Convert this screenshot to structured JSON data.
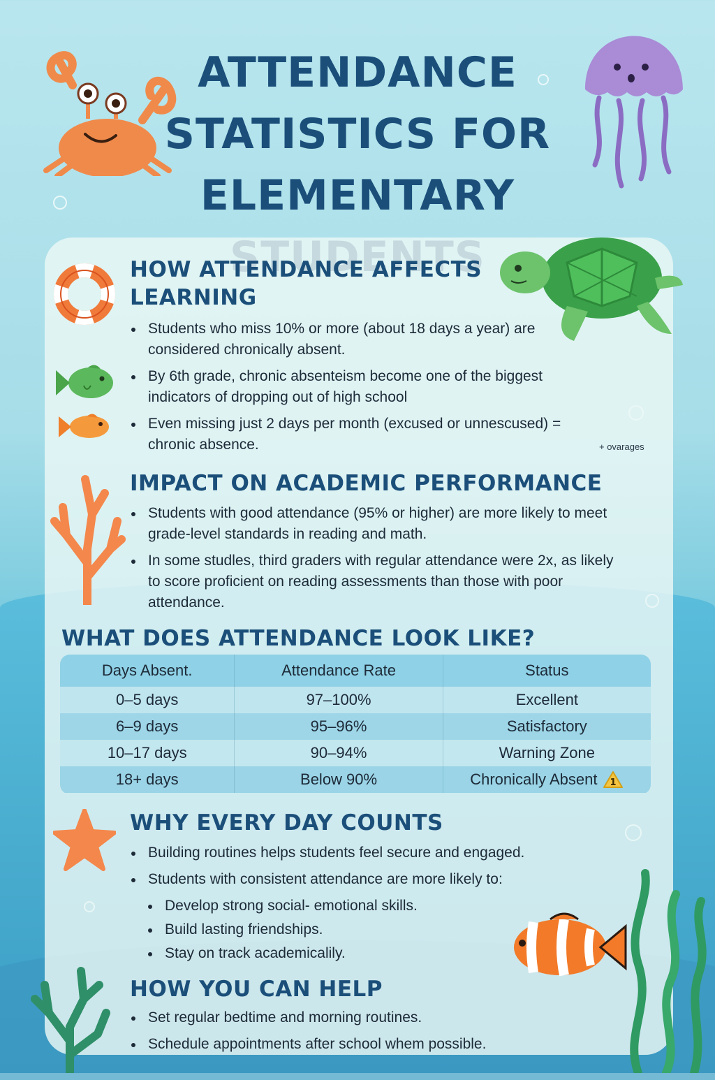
{
  "title": "ATTENDANCE STATISTICS FOR ELEMENTARY STUDENTS",
  "sections": {
    "learning": {
      "heading": "HOW ATTENDANCE AFFECTS LEARNING",
      "bullets": [
        "Students who miss 10% or more (about 18 days a year) are considered chronically absent.",
        "By 6th grade, chronic absenteism become one of the biggest indicators of dropping out of high school",
        "Even missing just 2 days per month (excused or unnescused) = chronic absence."
      ],
      "note": "+ ovarages"
    },
    "performance": {
      "heading": "IMPACT ON ACADEMIC PERFORMANCE",
      "bullets": [
        "Students with good attendance (95% or higher) are more likely to meet grade-level standards in reading and math.",
        "In some studles, third graders with regular attendance were 2x, as likely to score proficient on reading assessments than those with poor attendance."
      ]
    },
    "table": {
      "heading": "WHAT DOES ATTENDANCE LOOK LIKE?",
      "columns": [
        "Days Absent.",
        "Attendance Rate",
        "Status"
      ],
      "rows": [
        [
          "0–5 days",
          "97–100%",
          "Excellent"
        ],
        [
          "6–9 days",
          "95–96%",
          "Satisfactory"
        ],
        [
          "10–17 days",
          "90–94%",
          "Warning Zone"
        ],
        [
          "18+ days",
          "Below 90%",
          "Chronically Absent"
        ]
      ],
      "warning_badge": "1"
    },
    "every_day": {
      "heading": "WHY EVERY DAY COUNTS",
      "bullets": [
        "Building routines helps students feel secure and engaged.",
        "Students with consistent attendance are more likely to:"
      ],
      "sub_bullets": [
        "Develop strong social- emotional skills.",
        "Build lasting friendships.",
        "Stay on track academicalily."
      ]
    },
    "help": {
      "heading": "HOW YOU CAN HELP",
      "bullets": [
        "Set regular bedtime and morning routines.",
        "Schedule appointments after school whem possible."
      ]
    }
  },
  "icons": [
    "crab-icon",
    "jellyfish-icon",
    "sea-turtle-icon",
    "life-ring-icon",
    "green-fish-icon",
    "orange-fish-icon",
    "coral-icon",
    "starfish-icon",
    "clownfish-icon",
    "seaweed-icon",
    "warning-icon"
  ],
  "colors": {
    "heading": "#1b4f7a",
    "crab": "#f08a4b",
    "jellyfish": "#a98bd6",
    "turtle": "#5cb85c"
  }
}
